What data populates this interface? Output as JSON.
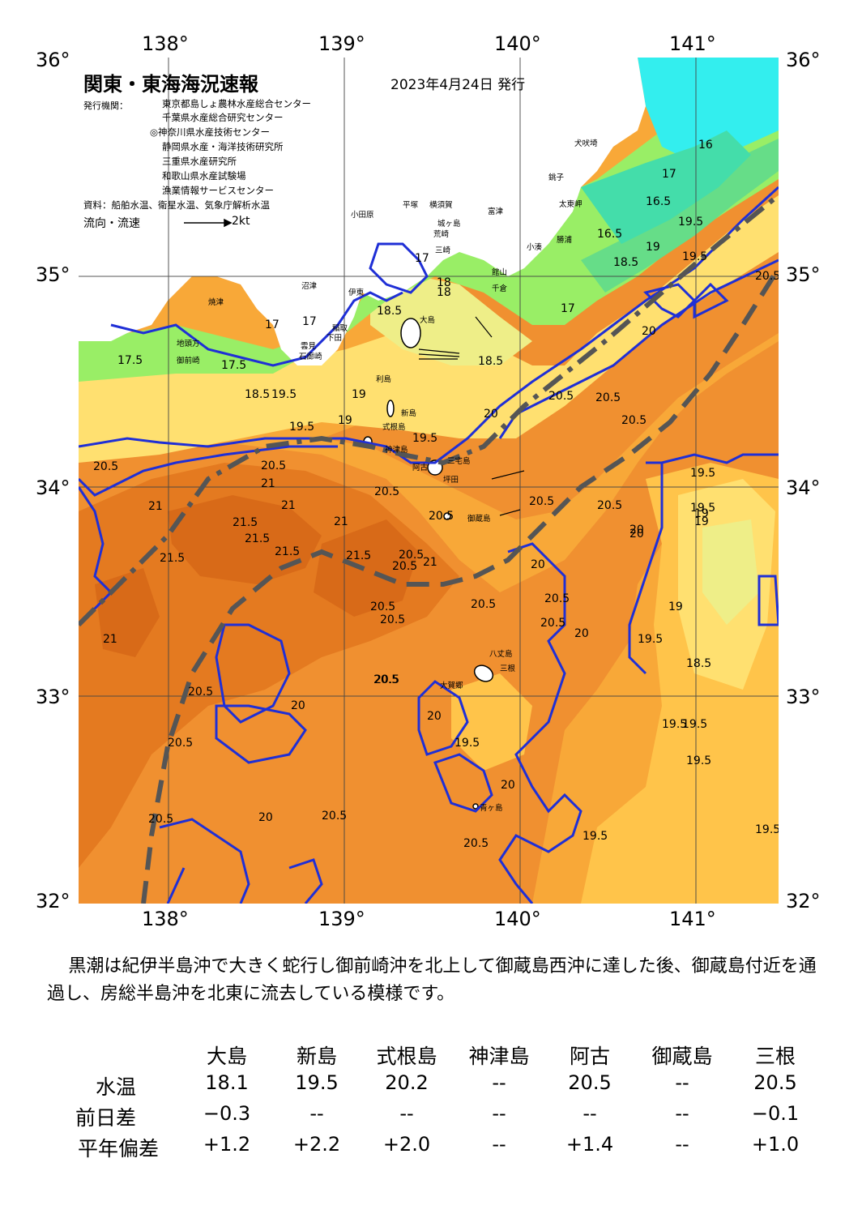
{
  "map": {
    "title": "関東・東海海況速報",
    "date": "2023年4月24日 発行",
    "issuer_label": "発行機関：",
    "issuers": [
      "東京都島しょ農林水産総合センター",
      "千葉県水産総合研究センター",
      "◎神奈川県水産技術センター",
      "静岡県水産・海洋技術研究所",
      "三重県水産研究所",
      "和歌山県水産試験場",
      "漁業情報サービスセンター"
    ],
    "source": "資料：船舶水温、衛星水温、気象庁解析水温",
    "flow_label": "流向・流速",
    "flow_scale": "2kt",
    "lon_ticks": [
      "138°",
      "139°",
      "140°",
      "141°"
    ],
    "lat_ticks": [
      "36°",
      "35°",
      "34°",
      "33°",
      "32°"
    ],
    "colors": {
      "t16": "#33eeee",
      "t17": "#66dd88",
      "t17_5": "#99ee66",
      "t18": "#ccee66",
      "t18_5": "#eeee88",
      "t19": "#ffe070",
      "t19_5": "#ffc44a",
      "t20": "#f8a838",
      "t20_5": "#f09030",
      "t21": "#e47a20",
      "t21_5": "#d86a18",
      "contour": "#1f2fd6",
      "kuroshio": "#555555"
    },
    "places": [
      {
        "name": "犬吠埼"
      },
      {
        "name": "銚子"
      },
      {
        "name": "太東岬"
      },
      {
        "name": "勝浦"
      },
      {
        "name": "小湊"
      },
      {
        "name": "富津"
      },
      {
        "name": "館山"
      },
      {
        "name": "千倉"
      },
      {
        "name": "小田原"
      },
      {
        "name": "平塚"
      },
      {
        "name": "横須賀"
      },
      {
        "name": "城ヶ島"
      },
      {
        "name": "三崎"
      },
      {
        "name": "荒崎"
      },
      {
        "name": "沼津"
      },
      {
        "name": "伊東"
      },
      {
        "name": "稲取"
      },
      {
        "name": "下田"
      },
      {
        "name": "石廊崎"
      },
      {
        "name": "雲見"
      },
      {
        "name": "焼津"
      },
      {
        "name": "地頭方"
      },
      {
        "name": "御前崎"
      },
      {
        "name": "大島"
      },
      {
        "name": "利島"
      },
      {
        "name": "新島"
      },
      {
        "name": "式根島"
      },
      {
        "name": "神津島"
      },
      {
        "name": "三宅島"
      },
      {
        "name": "阿古"
      },
      {
        "name": "坪田"
      },
      {
        "name": "御蔵島"
      },
      {
        "name": "八丈島"
      },
      {
        "name": "三根"
      },
      {
        "name": "大賀郷"
      },
      {
        "name": "青ヶ島"
      }
    ],
    "contour_labels": [
      "17.5",
      "17.5",
      "17",
      "18",
      "18.5",
      "18.5",
      "19.5",
      "19",
      "19",
      "19.5",
      "19.5",
      "20.5",
      "20.5",
      "21",
      "21",
      "21.5",
      "21.5",
      "21.5",
      "21",
      "21.5",
      "21.5",
      "21",
      "21",
      "20.5",
      "20.5",
      "21",
      "20.5",
      "20.5",
      "20.5",
      "20.5",
      "20",
      "20",
      "20.5",
      "20.5",
      "20",
      "20.5",
      "20.5",
      "20",
      "20.5",
      "20.5",
      "20.5",
      "20.5",
      "20",
      "19.5",
      "19.5",
      "19.5",
      "20",
      "20",
      "20.5",
      "20.5",
      "19.5",
      "19.5",
      "18.5",
      "19.5",
      "19.5",
      "19.5",
      "19",
      "19",
      "19.5",
      "18",
      "17",
      "17",
      "17",
      "16.5",
      "16.5",
      "17",
      "16",
      "18.5",
      "18.5",
      "19",
      "19.5",
      "20",
      "20.5",
      "20.5",
      "20.5",
      "20.5",
      "20.5",
      "20.5",
      "20",
      "20",
      "19.5",
      "19"
    ]
  },
  "summary": "黒潮は紀伊半島沖で大きく蛇行し御前崎沖を北上して御蔵島西沖に達した後、御蔵島付近を通過し、房総半島沖を北東に流去している模様です。",
  "table": {
    "columns": [
      "大島",
      "新島",
      "式根島",
      "神津島",
      "阿古",
      "御蔵島",
      "三根"
    ],
    "rows": [
      {
        "label": "水温",
        "values": [
          "18.1",
          "19.5",
          "20.2",
          "--",
          "20.5",
          "--",
          "20.5"
        ]
      },
      {
        "label": "前日差",
        "values": [
          "−0.3",
          "--",
          "--",
          "--",
          "--",
          "--",
          "−0.1"
        ]
      },
      {
        "label": "平年偏差",
        "values": [
          "+1.2",
          "+2.2",
          "+2.0",
          "--",
          "+1.4",
          "--",
          "+1.0"
        ]
      }
    ]
  }
}
